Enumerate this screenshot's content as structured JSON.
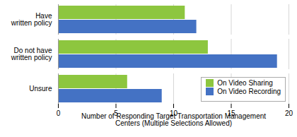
{
  "chart_data": {
    "type": "bar",
    "orientation": "horizontal",
    "categories": [
      "Unsure",
      "Do not have\nwritten policy",
      "Have\nwritten policy"
    ],
    "series": [
      {
        "name": "On Video Sharing",
        "color": "#8DC63F",
        "values": [
          6,
          13,
          11
        ]
      },
      {
        "name": "On Video Recording",
        "color": "#4472C4",
        "values": [
          9,
          19,
          12
        ]
      }
    ],
    "xlabel": "Number of Responding Target Transportation Management\nCenters (Multiple Selections Allowed)",
    "xlim": [
      0,
      20
    ],
    "xticks": [
      0,
      5,
      10,
      15,
      20
    ],
    "grid": true,
    "legend": "lower right"
  }
}
